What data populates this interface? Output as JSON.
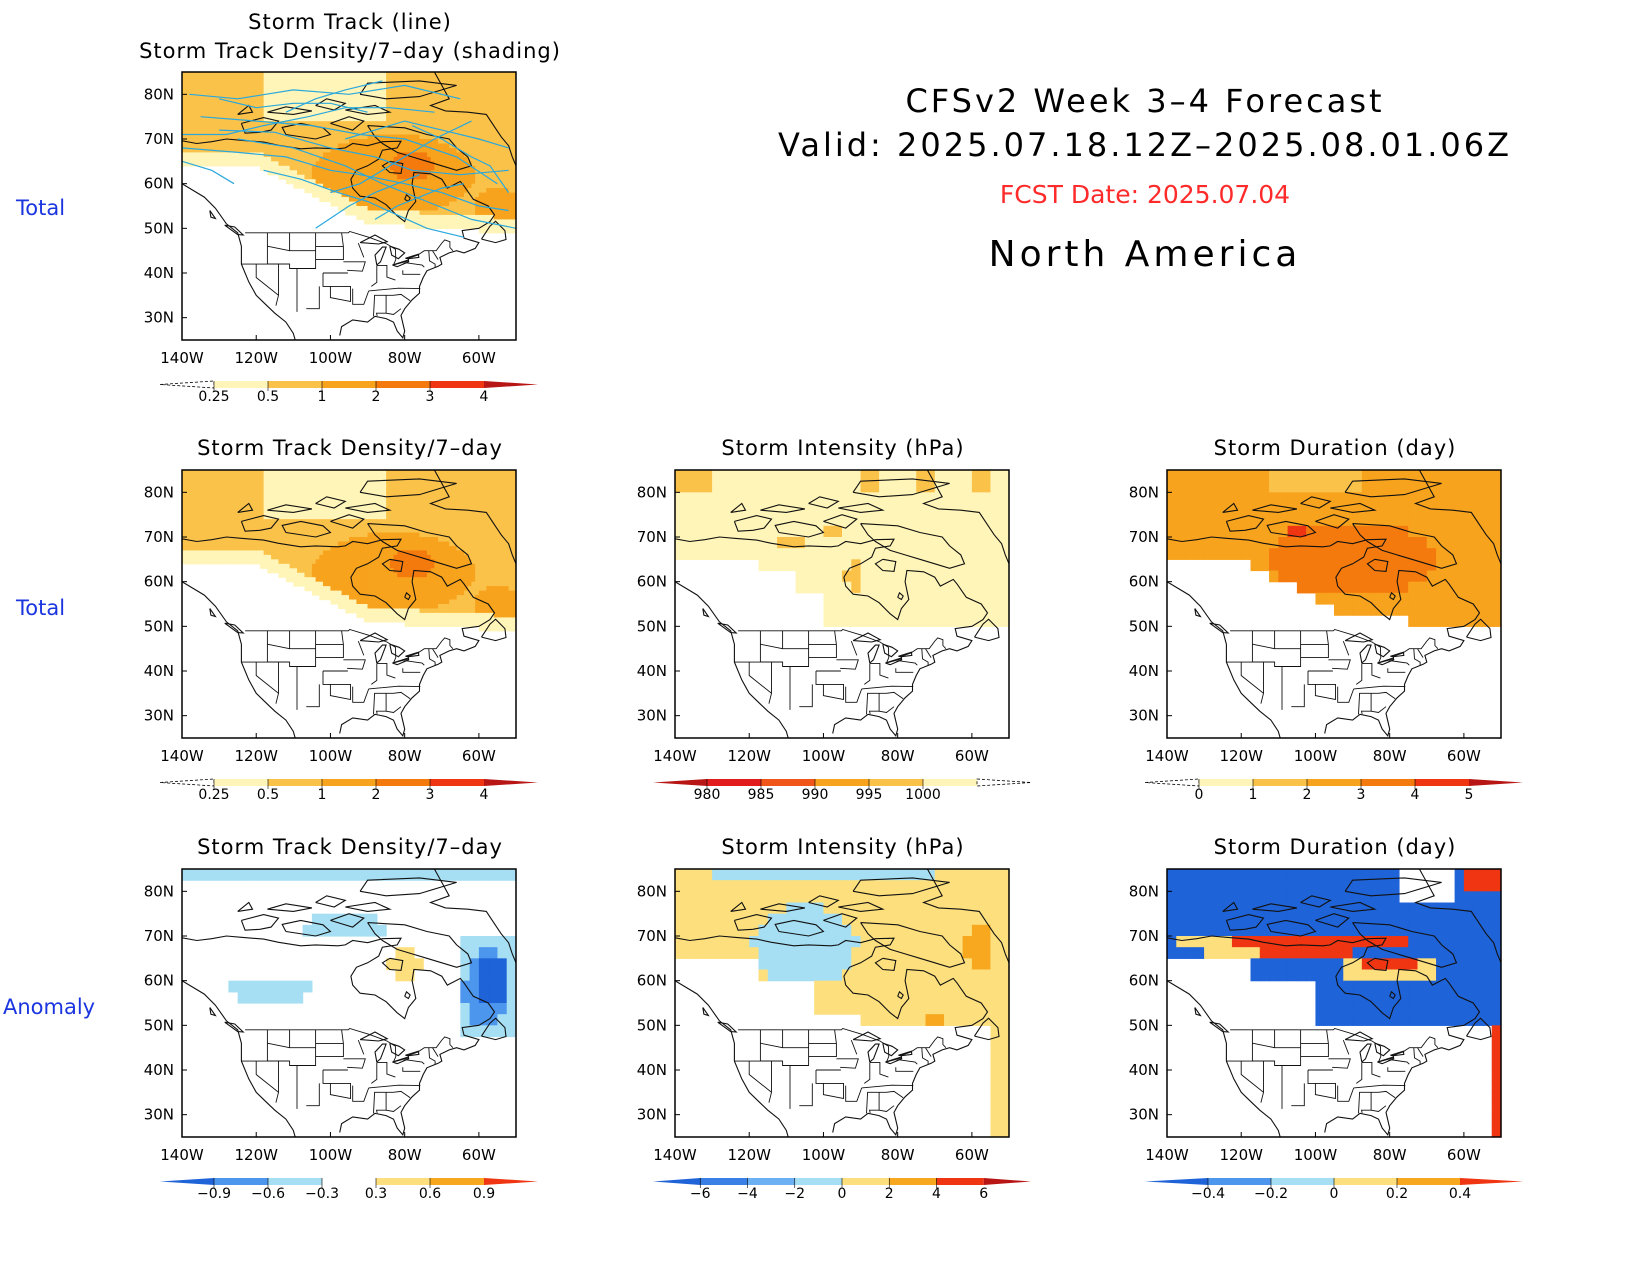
{
  "header": {
    "line1": "CFSv2 Week 3–4 Forecast",
    "line2": "Valid: 2025.07.18.12Z–2025.08.01.06Z",
    "fcst_date": "FCST Date: 2025.07.04",
    "region": "North America",
    "fcst_color": "#ff2a2a"
  },
  "row_labels": [
    "Total",
    "Total",
    "Anomaly"
  ],
  "lat_labels": [
    "80N",
    "70N",
    "60N",
    "50N",
    "40N",
    "30N"
  ],
  "lon_labels": [
    "140W",
    "120W",
    "100W",
    "80W",
    "60W"
  ],
  "panels": [
    {
      "id": "p1",
      "title1": "Storm Track (line)",
      "title2": "Storm Track Density/7–day (shading)",
      "field": "density_total",
      "tracks": true,
      "colorbar": {
        "type": "seq_yor",
        "labels": [
          "0.25",
          "0.5",
          "1",
          "2",
          "3",
          "4"
        ]
      }
    },
    {
      "id": "p2",
      "title1": "Storm Track Density/7–day",
      "field": "density_total",
      "colorbar": {
        "type": "seq_yor",
        "labels": [
          "0.25",
          "0.5",
          "1",
          "2",
          "3",
          "4"
        ]
      }
    },
    {
      "id": "p3",
      "title1": "Storm Intensity (hPa)",
      "field": "intensity_total",
      "colorbar": {
        "type": "rev_yor",
        "labels": [
          "980",
          "985",
          "990",
          "995",
          "1000"
        ]
      }
    },
    {
      "id": "p4",
      "title1": "Storm Duration (day)",
      "field": "duration_total",
      "colorbar": {
        "type": "seq_yor",
        "labels": [
          "0",
          "1",
          "2",
          "3",
          "4",
          "5"
        ]
      }
    },
    {
      "id": "p5",
      "title1": "Storm Track Density/7–day",
      "field": "density_anom",
      "colorbar": {
        "type": "div",
        "labels": [
          "−0.9",
          "−0.6",
          "−0.3",
          "0.3",
          "0.6",
          "0.9"
        ]
      }
    },
    {
      "id": "p6",
      "title1": "Storm Intensity (hPa)",
      "field": "intensity_anom",
      "colorbar": {
        "type": "div",
        "labels": [
          "−6",
          "−4",
          "−2",
          "0",
          "2",
          "4",
          "6"
        ]
      }
    },
    {
      "id": "p7",
      "title1": "Storm Duration (day)",
      "field": "duration_anom",
      "colorbar": {
        "type": "div",
        "labels": [
          "−0.4",
          "−0.2",
          "0",
          "0.2",
          "0.4"
        ]
      }
    }
  ],
  "colors": {
    "seq_yor": [
      "#fff5b8",
      "#fbc24a",
      "#f8a31d",
      "#f57a0e",
      "#ef3512",
      "#b81515"
    ],
    "div": [
      "#1f63d8",
      "#4c96ee",
      "#a6dff3",
      "#ffffff",
      "#fde07d",
      "#f7a81f",
      "#ef3512"
    ],
    "track_line": "#2aa8dc"
  }
}
